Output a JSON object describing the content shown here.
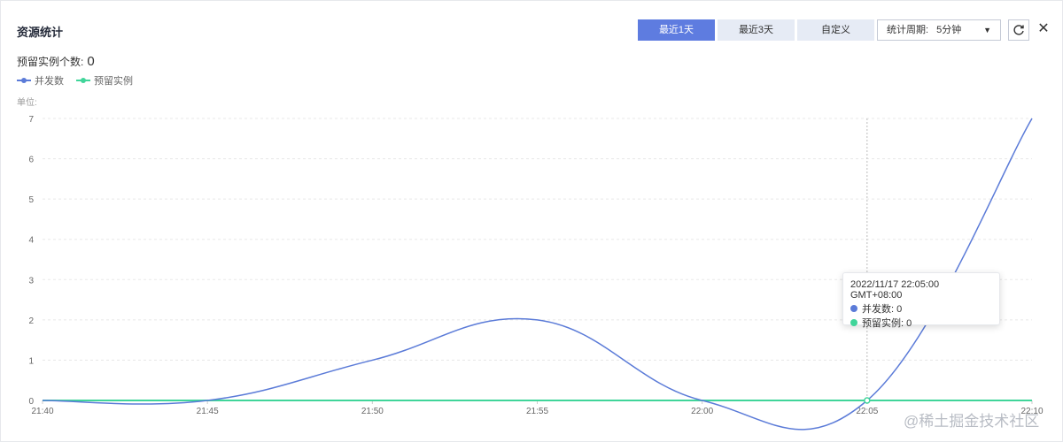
{
  "title": "资源统计",
  "periods": [
    "最近1天",
    "最近3天",
    "自定义"
  ],
  "active_period": 0,
  "stat_period_label": "统计周期:",
  "stat_period_value": "5分钟",
  "reserved_label": "预留实例个数:",
  "reserved_count": "0",
  "unit_label": "单位:",
  "colors": {
    "concurrency": "#5b7bd8",
    "reserved": "#40d59a",
    "accent": "#5e7ce0"
  },
  "icons": {
    "refresh": "refresh-icon",
    "close": "close-icon",
    "dropdown": "chevron-down-icon"
  },
  "tooltip": {
    "time": "2022/11/17 22:05:00 GMT+08:00",
    "rows": [
      "并发数: 0",
      "预留实例: 0"
    ]
  },
  "watermark": "@稀土掘金技术社区",
  "chart_data": {
    "type": "line",
    "x": [
      "21:40",
      "21:45",
      "21:50",
      "21:55",
      "22:00",
      "22:05",
      "22:10"
    ],
    "series": [
      {
        "name": "并发数",
        "values": [
          0,
          0,
          1,
          2,
          0,
          0,
          7
        ]
      },
      {
        "name": "预留实例",
        "values": [
          0,
          0,
          0,
          0,
          0,
          0,
          0
        ]
      }
    ],
    "ylim": [
      0,
      7
    ],
    "yticks": [
      0,
      1,
      2,
      3,
      4,
      5,
      6,
      7
    ],
    "grid": true,
    "legend": "top-left",
    "highlight_x": "22:05"
  }
}
